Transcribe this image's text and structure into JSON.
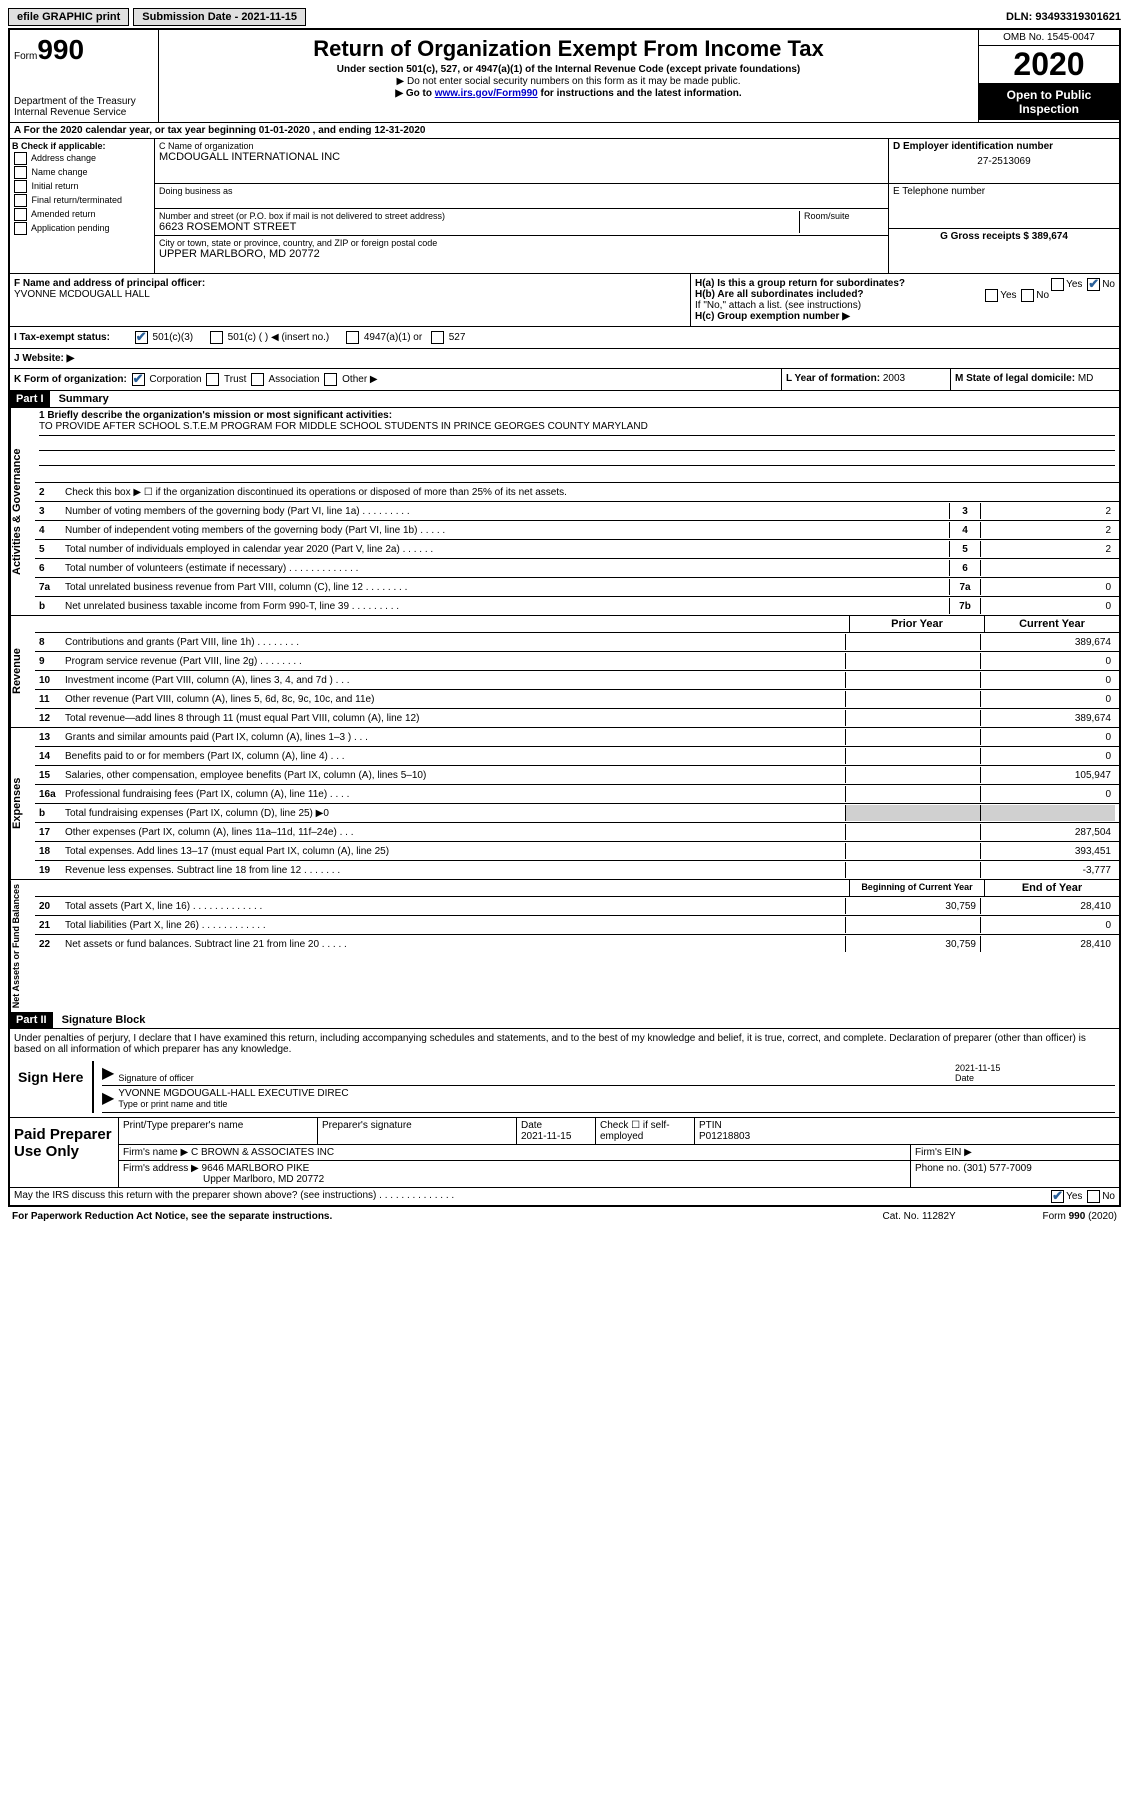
{
  "topbar": {
    "efile": "efile GRAPHIC print",
    "submission_label": "Submission Date - 2021-11-15",
    "dln": "DLN: 93493319301621"
  },
  "header": {
    "form_word": "Form",
    "form_num": "990",
    "dept": "Department of the Treasury\nInternal Revenue Service",
    "title": "Return of Organization Exempt From Income Tax",
    "sub1": "Under section 501(c), 527, or 4947(a)(1) of the Internal Revenue Code (except private foundations)",
    "sub2": "▶ Do not enter social security numbers on this form as it may be made public.",
    "sub3_pre": "▶ Go to ",
    "sub3_link": "www.irs.gov/Form990",
    "sub3_post": " for instructions and the latest information.",
    "omb": "OMB No. 1545-0047",
    "year": "2020",
    "inspect": "Open to Public Inspection"
  },
  "rowA": "A For the 2020 calendar year, or tax year beginning 01-01-2020   , and ending 12-31-2020",
  "colB": {
    "label": "B Check if applicable:",
    "items": [
      "Address change",
      "Name change",
      "Initial return",
      "Final return/terminated",
      "Amended return",
      "Application pending"
    ]
  },
  "boxC": {
    "label": "C Name of organization",
    "value": "MCDOUGALL INTERNATIONAL INC",
    "dba": "Doing business as"
  },
  "addr": {
    "street_label": "Number and street (or P.O. box if mail is not delivered to street address)",
    "street": "6623 ROSEMONT STREET",
    "room_label": "Room/suite",
    "city_label": "City or town, state or province, country, and ZIP or foreign postal code",
    "city": "UPPER MARLBORO, MD  20772"
  },
  "boxD": {
    "label": "D Employer identification number",
    "value": "27-2513069"
  },
  "boxE": {
    "label": "E Telephone number"
  },
  "boxG": {
    "label": "G Gross receipts $ 389,674"
  },
  "boxF": {
    "label": "F Name and address of principal officer:",
    "value": "YVONNE MCDOUGALL HALL"
  },
  "boxH": {
    "a": "H(a)  Is this a group return for subordinates?",
    "b": "H(b)  Are all subordinates included?",
    "b_note": "If \"No,\" attach a list. (see instructions)",
    "c": "H(c)  Group exemption number ▶",
    "yes": "Yes",
    "no": "No"
  },
  "taxI": {
    "label": "I   Tax-exempt status:",
    "opts": [
      "501(c)(3)",
      "501(c) (  ) ◀ (insert no.)",
      "4947(a)(1) or",
      "527"
    ]
  },
  "webJ": "J   Website: ▶",
  "rowK": "K Form of organization:",
  "rowK_opts": [
    "Corporation",
    "Trust",
    "Association",
    "Other ▶"
  ],
  "rowL": {
    "label": "L Year of formation: ",
    "value": "2003"
  },
  "rowM": {
    "label": "M State of legal domicile: ",
    "value": "MD"
  },
  "part1": {
    "hdr": "Part I",
    "title": "Summary"
  },
  "mission": {
    "label": "1   Briefly describe the organization's mission or most significant activities:",
    "text": "TO PROVIDE AFTER SCHOOL S.T.E.M PROGRAM FOR MIDDLE SCHOOL STUDENTS IN PRINCE GEORGES COUNTY MARYLAND"
  },
  "lines_gov": [
    {
      "n": "2",
      "d": "Check this box ▶ ☐  if the organization discontinued its operations or disposed of more than 25% of its net assets.",
      "box": "",
      "v": ""
    },
    {
      "n": "3",
      "d": "Number of voting members of the governing body (Part VI, line 1a)   .    .    .    .    .    .    .    .    .",
      "box": "3",
      "v": "2"
    },
    {
      "n": "4",
      "d": "Number of independent voting members of the governing body (Part VI, line 1b)   .    .    .    .    .",
      "box": "4",
      "v": "2"
    },
    {
      "n": "5",
      "d": "Total number of individuals employed in calendar year 2020 (Part V, line 2a)   .    .    .    .    .    .",
      "box": "5",
      "v": "2"
    },
    {
      "n": "6",
      "d": "Total number of volunteers (estimate if necessary)   .    .    .    .    .    .    .    .    .    .    .    .    .",
      "box": "6",
      "v": ""
    },
    {
      "n": "7a",
      "d": "Total unrelated business revenue from Part VIII, column (C), line 12   .    .    .    .    .    .    .    .",
      "box": "7a",
      "v": "0"
    },
    {
      "n": "b",
      "d": "Net unrelated business taxable income from Form 990-T, line 39   .    .    .    .    .    .    .    .    .",
      "box": "7b",
      "v": "0"
    }
  ],
  "cols_hdr": {
    "prior": "Prior Year",
    "current": "Current Year"
  },
  "lines_rev": [
    {
      "n": "8",
      "d": "Contributions and grants (Part VIII, line 1h)   .    .    .    .    .    .    .    .",
      "p": "",
      "c": "389,674"
    },
    {
      "n": "9",
      "d": "Program service revenue (Part VIII, line 2g)   .    .    .    .    .    .    .    .",
      "p": "",
      "c": "0"
    },
    {
      "n": "10",
      "d": "Investment income (Part VIII, column (A), lines 3, 4, and 7d )   .    .    .",
      "p": "",
      "c": "0"
    },
    {
      "n": "11",
      "d": "Other revenue (Part VIII, column (A), lines 5, 6d, 8c, 9c, 10c, and 11e)",
      "p": "",
      "c": "0"
    },
    {
      "n": "12",
      "d": "Total revenue—add lines 8 through 11 (must equal Part VIII, column (A), line 12)",
      "p": "",
      "c": "389,674"
    }
  ],
  "lines_exp": [
    {
      "n": "13",
      "d": "Grants and similar amounts paid (Part IX, column (A), lines 1–3 )   .    .    .",
      "p": "",
      "c": "0"
    },
    {
      "n": "14",
      "d": "Benefits paid to or for members (Part IX, column (A), line 4)   .    .    .",
      "p": "",
      "c": "0"
    },
    {
      "n": "15",
      "d": "Salaries, other compensation, employee benefits (Part IX, column (A), lines 5–10)",
      "p": "",
      "c": "105,947"
    },
    {
      "n": "16a",
      "d": "Professional fundraising fees (Part IX, column (A), line 11e)   .    .    .    .",
      "p": "",
      "c": "0"
    },
    {
      "n": "b",
      "d": "Total fundraising expenses (Part IX, column (D), line 25) ▶0",
      "p": "shade",
      "c": "shade"
    },
    {
      "n": "17",
      "d": "Other expenses (Part IX, column (A), lines 11a–11d, 11f–24e)   .    .    .",
      "p": "",
      "c": "287,504"
    },
    {
      "n": "18",
      "d": "Total expenses. Add lines 13–17 (must equal Part IX, column (A), line 25)",
      "p": "",
      "c": "393,451"
    },
    {
      "n": "19",
      "d": "Revenue less expenses. Subtract line 18 from line 12   .    .    .    .    .    .    .",
      "p": "",
      "c": "-3,777"
    }
  ],
  "cols_hdr2": {
    "prior": "Beginning of Current Year",
    "current": "End of Year"
  },
  "lines_net": [
    {
      "n": "20",
      "d": "Total assets (Part X, line 16)   .    .    .    .    .    .    .    .    .    .    .    .    .",
      "p": "30,759",
      "c": "28,410"
    },
    {
      "n": "21",
      "d": "Total liabilities (Part X, line 26)   .    .    .    .    .    .    .    .    .    .    .    .",
      "p": "",
      "c": "0"
    },
    {
      "n": "22",
      "d": "Net assets or fund balances. Subtract line 21 from line 20   .    .    .    .    .",
      "p": "30,759",
      "c": "28,410"
    }
  ],
  "side_labels": {
    "gov": "Activities & Governance",
    "rev": "Revenue",
    "exp": "Expenses",
    "net": "Net Assets or Fund Balances"
  },
  "part2": {
    "hdr": "Part II",
    "title": "Signature Block"
  },
  "sig": {
    "declaration": "Under penalties of perjury, I declare that I have examined this return, including accompanying schedules and statements, and to the best of my knowledge and belief, it is true, correct, and complete. Declaration of preparer (other than officer) is based on all information of which preparer has any knowledge.",
    "sign_here": "Sign Here",
    "sig_officer": "Signature of officer",
    "date": "Date",
    "date_val": "2021-11-15",
    "name_val": "YVONNE MGDOUGALL-HALL  EXECUTIVE DIREC",
    "name_label": "Type or print name and title"
  },
  "prep": {
    "title": "Paid Preparer Use Only",
    "h1": "Print/Type preparer's name",
    "h2": "Preparer's signature",
    "h3": "Date",
    "h3v": "2021-11-15",
    "h4": "Check ☐ if self-employed",
    "h5": "PTIN",
    "h5v": "P01218803",
    "firm_name_l": "Firm's name    ▶",
    "firm_name": "C BROWN & ASSOCIATES INC",
    "firm_ein_l": "Firm's EIN ▶",
    "firm_addr_l": "Firm's address ▶",
    "firm_addr1": "9646 MARLBORO PIKE",
    "firm_addr2": "Upper Marlboro, MD  20772",
    "phone_l": "Phone no. ",
    "phone": "(301) 577-7009",
    "discuss": "May the IRS discuss this return with the preparer shown above? (see instructions)   .    .    .    .    .    .    .    .    .    .    .    .    .    .",
    "yes": "Yes",
    "no": "No"
  },
  "footer": {
    "left": "For Paperwork Reduction Act Notice, see the separate instructions.",
    "mid": "Cat. No. 11282Y",
    "right": "Form 990 (2020)"
  }
}
